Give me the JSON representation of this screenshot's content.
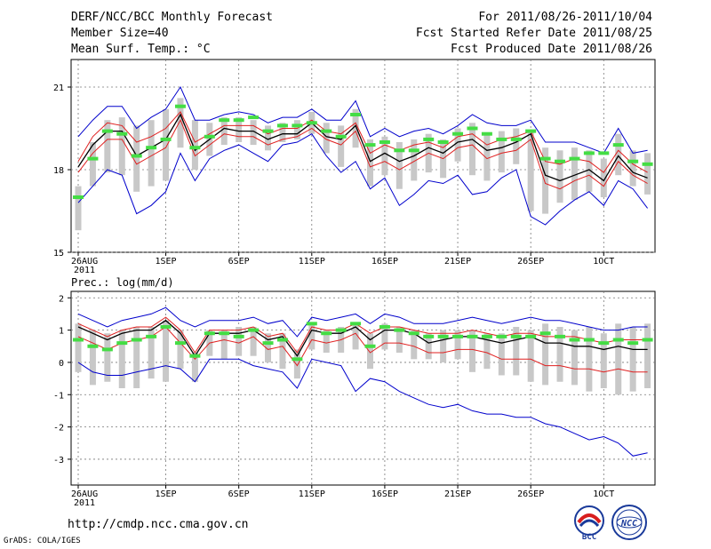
{
  "header": {
    "title": "DERF/NCC/BCC Monthly Forecast",
    "member_size": "Member Size=40",
    "variable": "Mean Surf. Temp.: °C",
    "forecast_period": "For 2011/08/26-2011/10/04",
    "started_refer": "Fcst Started Refer Date 2011/08/25",
    "produced": "Fcst Produced Date 2011/08/26"
  },
  "footer": {
    "url": "http://cmdp.ncc.cma.gov.cn",
    "grads": "GrADS: COLA/IGES",
    "logo_left_text": "BCC",
    "logo_right_text": "NCC"
  },
  "colors": {
    "box": "#c8c8c8",
    "ensemble_mean": "#000000",
    "spread_inner": "#e02020",
    "spread_outer": "#0000cc",
    "climatology": "#44dd44",
    "grid": "#777777"
  },
  "chart_data": [
    {
      "type": "box-line",
      "title": "Mean Surf. Temp.: °C",
      "ylim": [
        15,
        22
      ],
      "yticks": [
        15,
        18,
        21
      ],
      "days": 40,
      "xtick_labels": [
        {
          "day": 0,
          "label": "26AUG",
          "sub": "2011"
        },
        {
          "day": 6,
          "label": "1SEP"
        },
        {
          "day": 11,
          "label": "6SEP"
        },
        {
          "day": 16,
          "label": "11SEP"
        },
        {
          "day": 21,
          "label": "16SEP"
        },
        {
          "day": 26,
          "label": "21SEP"
        },
        {
          "day": 31,
          "label": "26SEP"
        },
        {
          "day": 36,
          "label": "1OCT"
        }
      ],
      "series": [
        {
          "name": "max",
          "role": "outer",
          "values": [
            19.2,
            19.8,
            20.3,
            20.3,
            19.5,
            19.9,
            20.2,
            21.0,
            19.8,
            19.8,
            20.0,
            20.1,
            20.0,
            19.7,
            19.9,
            19.9,
            20.2,
            19.8,
            19.8,
            20.5,
            19.2,
            19.5,
            19.2,
            19.4,
            19.5,
            19.3,
            19.6,
            20.0,
            19.7,
            19.6,
            19.6,
            19.8,
            19.0,
            19.0,
            19.0,
            18.8,
            18.6,
            19.5,
            18.6,
            18.7
          ]
        },
        {
          "name": "p75",
          "role": "inner",
          "values": [
            18.3,
            19.2,
            19.7,
            19.6,
            19.0,
            19.2,
            19.5,
            20.1,
            19.0,
            19.3,
            19.6,
            19.6,
            19.6,
            19.3,
            19.5,
            19.5,
            19.8,
            19.4,
            19.3,
            19.7,
            18.6,
            18.9,
            18.7,
            18.9,
            19.0,
            18.8,
            19.2,
            19.3,
            18.9,
            19.1,
            19.2,
            19.4,
            18.3,
            18.2,
            18.4,
            18.3,
            17.9,
            18.7,
            18.2,
            17.9
          ]
        },
        {
          "name": "mean",
          "role": "mean",
          "values": [
            18.1,
            18.9,
            19.4,
            19.4,
            18.5,
            18.8,
            19.1,
            20.0,
            18.7,
            19.1,
            19.5,
            19.4,
            19.4,
            19.1,
            19.3,
            19.3,
            19.7,
            19.2,
            19.1,
            19.6,
            18.3,
            18.6,
            18.3,
            18.5,
            18.8,
            18.6,
            19.0,
            19.1,
            18.7,
            18.8,
            19.0,
            19.3,
            17.8,
            17.6,
            17.8,
            18.0,
            17.6,
            18.5,
            17.9,
            17.7
          ]
        },
        {
          "name": "p25",
          "role": "inner",
          "values": [
            17.9,
            18.6,
            19.1,
            19.1,
            18.2,
            18.5,
            18.8,
            19.8,
            18.5,
            18.9,
            19.3,
            19.2,
            19.2,
            18.9,
            19.1,
            19.2,
            19.5,
            19.1,
            18.9,
            19.4,
            18.1,
            18.3,
            18.0,
            18.3,
            18.6,
            18.4,
            18.8,
            18.9,
            18.4,
            18.6,
            18.7,
            19.1,
            17.5,
            17.3,
            17.6,
            17.8,
            17.4,
            18.3,
            17.8,
            17.5
          ]
        },
        {
          "name": "min",
          "role": "outer",
          "values": [
            16.8,
            17.4,
            18.0,
            17.8,
            16.4,
            16.7,
            17.2,
            18.6,
            17.6,
            18.4,
            18.7,
            18.9,
            18.6,
            18.3,
            18.9,
            19.0,
            19.3,
            18.5,
            17.9,
            18.3,
            17.3,
            17.7,
            16.7,
            17.1,
            17.6,
            17.5,
            17.8,
            17.1,
            17.2,
            17.7,
            18.0,
            16.3,
            16.0,
            16.5,
            16.9,
            17.2,
            16.7,
            17.6,
            17.3,
            16.6
          ]
        },
        {
          "name": "clim",
          "role": "climatology",
          "values": [
            17.0,
            18.4,
            19.4,
            19.3,
            18.5,
            18.8,
            19.1,
            20.3,
            18.8,
            19.2,
            19.8,
            19.8,
            19.9,
            19.4,
            19.6,
            19.6,
            19.7,
            19.4,
            19.2,
            20.0,
            18.9,
            19.0,
            18.7,
            18.7,
            19.1,
            19.0,
            19.3,
            19.5,
            19.3,
            19.1,
            19.1,
            19.4,
            18.4,
            18.3,
            18.4,
            18.6,
            18.6,
            18.9,
            18.3,
            18.2
          ]
        }
      ],
      "boxes": [
        {
          "day": 0,
          "low": 15.8,
          "high": 17.4
        },
        {
          "day": 1,
          "low": 17.4,
          "high": 19.0
        },
        {
          "day": 2,
          "low": 17.9,
          "high": 19.8
        },
        {
          "day": 3,
          "low": 17.8,
          "high": 19.9
        },
        {
          "day": 4,
          "low": 17.2,
          "high": 19.6
        },
        {
          "day": 5,
          "low": 17.4,
          "high": 19.8
        },
        {
          "day": 6,
          "low": 17.6,
          "high": 20.2
        },
        {
          "day": 7,
          "low": 18.8,
          "high": 20.6
        },
        {
          "day": 8,
          "low": 18.0,
          "high": 19.8
        },
        {
          "day": 9,
          "low": 18.5,
          "high": 19.7
        },
        {
          "day": 10,
          "low": 18.9,
          "high": 19.9
        },
        {
          "day": 11,
          "low": 19.0,
          "high": 19.9
        },
        {
          "day": 12,
          "low": 18.9,
          "high": 19.8
        },
        {
          "day": 13,
          "low": 18.7,
          "high": 19.6
        },
        {
          "day": 14,
          "low": 19.0,
          "high": 19.7
        },
        {
          "day": 15,
          "low": 19.1,
          "high": 19.8
        },
        {
          "day": 16,
          "low": 19.3,
          "high": 20.1
        },
        {
          "day": 17,
          "low": 18.6,
          "high": 19.7
        },
        {
          "day": 18,
          "low": 18.1,
          "high": 19.6
        },
        {
          "day": 19,
          "low": 18.8,
          "high": 20.2
        },
        {
          "day": 20,
          "low": 17.4,
          "high": 19.1
        },
        {
          "day": 21,
          "low": 17.8,
          "high": 19.2
        },
        {
          "day": 22,
          "low": 17.3,
          "high": 19.0
        },
        {
          "day": 23,
          "low": 17.6,
          "high": 19.1
        },
        {
          "day": 24,
          "low": 17.9,
          "high": 19.3
        },
        {
          "day": 25,
          "low": 17.7,
          "high": 19.1
        },
        {
          "day": 26,
          "low": 18.3,
          "high": 19.5
        },
        {
          "day": 27,
          "low": 17.8,
          "high": 19.7
        },
        {
          "day": 28,
          "low": 17.6,
          "high": 19.3
        },
        {
          "day": 29,
          "low": 17.9,
          "high": 19.4
        },
        {
          "day": 30,
          "low": 18.2,
          "high": 19.5
        },
        {
          "day": 31,
          "low": 16.5,
          "high": 19.4
        },
        {
          "day": 32,
          "low": 16.4,
          "high": 18.8
        },
        {
          "day": 33,
          "low": 16.8,
          "high": 18.7
        },
        {
          "day": 34,
          "low": 16.9,
          "high": 18.8
        },
        {
          "day": 35,
          "low": 17.2,
          "high": 18.7
        },
        {
          "day": 36,
          "low": 17.0,
          "high": 18.4
        },
        {
          "day": 37,
          "low": 17.8,
          "high": 19.3
        },
        {
          "day": 38,
          "low": 17.4,
          "high": 18.7
        },
        {
          "day": 39,
          "low": 17.1,
          "high": 18.6
        }
      ]
    },
    {
      "type": "box-line",
      "title": "Prec.: log(mm/d)",
      "ylim": [
        -3.8,
        2.2
      ],
      "yticks": [
        -3,
        -2,
        -1,
        0,
        1,
        2
      ],
      "days": 40,
      "xtick_labels": [
        {
          "day": 0,
          "label": "26AUG",
          "sub": "2011"
        },
        {
          "day": 6,
          "label": "1SEP"
        },
        {
          "day": 11,
          "label": "6SEP"
        },
        {
          "day": 16,
          "label": "11SEP"
        },
        {
          "day": 21,
          "label": "16SEP"
        },
        {
          "day": 26,
          "label": "21SEP"
        },
        {
          "day": 31,
          "label": "26SEP"
        },
        {
          "day": 36,
          "label": "1OCT"
        }
      ],
      "series": [
        {
          "name": "max",
          "role": "outer",
          "values": [
            1.5,
            1.3,
            1.1,
            1.3,
            1.4,
            1.5,
            1.7,
            1.3,
            1.1,
            1.3,
            1.3,
            1.3,
            1.4,
            1.2,
            1.3,
            0.8,
            1.4,
            1.3,
            1.4,
            1.5,
            1.2,
            1.5,
            1.4,
            1.2,
            1.2,
            1.2,
            1.3,
            1.4,
            1.3,
            1.2,
            1.3,
            1.4,
            1.3,
            1.3,
            1.2,
            1.1,
            1.0,
            1.0,
            1.1,
            1.1
          ]
        },
        {
          "name": "p75",
          "role": "inner",
          "values": [
            1.2,
            1.0,
            0.8,
            1.0,
            1.1,
            1.1,
            1.4,
            1.0,
            0.3,
            1.0,
            1.0,
            1.0,
            1.1,
            0.8,
            0.9,
            0.3,
            1.1,
            1.0,
            1.0,
            1.2,
            0.9,
            1.1,
            1.1,
            1.0,
            0.9,
            0.9,
            0.9,
            1.0,
            0.9,
            0.8,
            0.9,
            0.9,
            0.8,
            0.8,
            0.8,
            0.7,
            0.6,
            0.7,
            0.7,
            0.7
          ]
        },
        {
          "name": "mean",
          "role": "mean",
          "values": [
            1.1,
            0.9,
            0.7,
            0.9,
            1.0,
            1.0,
            1.3,
            0.9,
            0.2,
            0.9,
            0.9,
            0.9,
            1.0,
            0.7,
            0.8,
            0.2,
            1.0,
            0.9,
            0.9,
            1.1,
            0.7,
            1.0,
            1.0,
            0.9,
            0.6,
            0.7,
            0.8,
            0.8,
            0.7,
            0.6,
            0.7,
            0.8,
            0.6,
            0.6,
            0.5,
            0.5,
            0.4,
            0.5,
            0.4,
            0.4
          ]
        },
        {
          "name": "p25",
          "role": "inner",
          "values": [
            0.8,
            0.6,
            0.4,
            0.6,
            0.7,
            0.8,
            1.1,
            0.6,
            0.1,
            0.6,
            0.7,
            0.6,
            0.8,
            0.4,
            0.5,
            -0.1,
            0.7,
            0.6,
            0.7,
            0.9,
            0.3,
            0.6,
            0.6,
            0.5,
            0.3,
            0.3,
            0.4,
            0.4,
            0.3,
            0.1,
            0.1,
            0.1,
            -0.1,
            -0.1,
            -0.2,
            -0.2,
            -0.3,
            -0.2,
            -0.3,
            -0.3
          ]
        },
        {
          "name": "min",
          "role": "outer",
          "values": [
            0.0,
            -0.3,
            -0.4,
            -0.4,
            -0.3,
            -0.2,
            -0.1,
            -0.2,
            -0.6,
            0.1,
            0.1,
            0.1,
            -0.1,
            -0.2,
            -0.3,
            -0.8,
            0.1,
            0.0,
            -0.1,
            -0.9,
            -0.5,
            -0.6,
            -0.9,
            -1.1,
            -1.3,
            -1.4,
            -1.3,
            -1.5,
            -1.6,
            -1.6,
            -1.7,
            -1.7,
            -1.9,
            -2.0,
            -2.2,
            -2.4,
            -2.3,
            -2.5,
            -2.9,
            -2.8
          ]
        },
        {
          "name": "clim",
          "role": "climatology",
          "values": [
            0.7,
            0.5,
            0.4,
            0.6,
            0.7,
            0.8,
            1.1,
            0.6,
            0.2,
            0.9,
            0.9,
            0.8,
            1.0,
            0.6,
            0.7,
            0.1,
            1.2,
            0.9,
            1.0,
            1.2,
            0.5,
            1.1,
            1.0,
            0.9,
            0.8,
            0.8,
            0.8,
            0.8,
            0.8,
            0.8,
            0.8,
            0.8,
            0.9,
            0.8,
            0.7,
            0.7,
            0.6,
            0.7,
            0.6,
            0.7
          ]
        }
      ],
      "boxes": [
        {
          "day": 0,
          "low": -0.3,
          "high": 1.2
        },
        {
          "day": 1,
          "low": -0.7,
          "high": 1.0
        },
        {
          "day": 2,
          "low": -0.6,
          "high": 0.9
        },
        {
          "day": 3,
          "low": -0.8,
          "high": 1.0
        },
        {
          "day": 4,
          "low": -0.8,
          "high": 1.1
        },
        {
          "day": 5,
          "low": -0.5,
          "high": 1.1
        },
        {
          "day": 6,
          "low": -0.6,
          "high": 1.3
        },
        {
          "day": 7,
          "low": -0.2,
          "high": 1.0
        },
        {
          "day": 8,
          "low": -0.6,
          "high": 0.3
        },
        {
          "day": 9,
          "low": 0.2,
          "high": 1.0
        },
        {
          "day": 10,
          "low": 0.1,
          "high": 1.0
        },
        {
          "day": 11,
          "low": 0.2,
          "high": 1.1
        },
        {
          "day": 12,
          "low": 0.2,
          "high": 1.1
        },
        {
          "day": 13,
          "low": 0.0,
          "high": 0.9
        },
        {
          "day": 14,
          "low": -0.2,
          "high": 0.9
        },
        {
          "day": 15,
          "low": -0.5,
          "high": 0.4
        },
        {
          "day": 16,
          "low": 0.4,
          "high": 1.2
        },
        {
          "day": 17,
          "low": 0.3,
          "high": 1.0
        },
        {
          "day": 18,
          "low": 0.3,
          "high": 1.1
        },
        {
          "day": 19,
          "low": 0.4,
          "high": 1.2
        },
        {
          "day": 20,
          "low": -0.2,
          "high": 0.9
        },
        {
          "day": 21,
          "low": 0.4,
          "high": 1.2
        },
        {
          "day": 22,
          "low": 0.3,
          "high": 1.1
        },
        {
          "day": 23,
          "low": 0.1,
          "high": 1.0
        },
        {
          "day": 24,
          "low": 0.1,
          "high": 0.9
        },
        {
          "day": 25,
          "low": 0.0,
          "high": 1.0
        },
        {
          "day": 26,
          "low": 0.1,
          "high": 1.0
        },
        {
          "day": 27,
          "low": -0.3,
          "high": 1.0
        },
        {
          "day": 28,
          "low": -0.2,
          "high": 0.9
        },
        {
          "day": 29,
          "low": -0.4,
          "high": 0.9
        },
        {
          "day": 30,
          "low": -0.4,
          "high": 1.1
        },
        {
          "day": 31,
          "low": -0.6,
          "high": 1.0
        },
        {
          "day": 32,
          "low": -0.7,
          "high": 1.2
        },
        {
          "day": 33,
          "low": -0.6,
          "high": 1.1
        },
        {
          "day": 34,
          "low": -0.7,
          "high": 1.0
        },
        {
          "day": 35,
          "low": -0.9,
          "high": 1.1
        },
        {
          "day": 36,
          "low": -0.8,
          "high": 0.9
        },
        {
          "day": 37,
          "low": -1.0,
          "high": 1.2
        },
        {
          "day": 38,
          "low": -0.9,
          "high": 1.1
        },
        {
          "day": 39,
          "low": -0.8,
          "high": 1.2
        }
      ]
    }
  ]
}
